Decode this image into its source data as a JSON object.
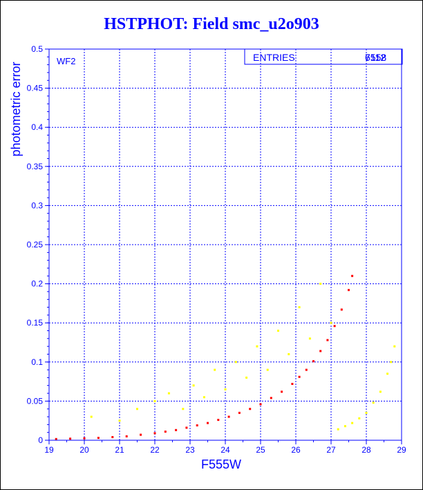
{
  "colors": {
    "axis": "#0000ff",
    "series_primary": "#ff0000",
    "series_secondary": "#ffff00",
    "background": "#ffffff"
  },
  "legend": {
    "label": "ENTRIES",
    "value_a": "7558",
    "value_b": "6112"
  },
  "chart_data": {
    "type": "scatter",
    "title": "HSTPHOT: Field smc_u2o903",
    "panel_label": "WF2",
    "xlabel": "F555W",
    "ylabel": "photometric error",
    "xlim": [
      19,
      29
    ],
    "ylim": [
      0,
      0.5
    ],
    "x_ticks": [
      19,
      20,
      21,
      22,
      23,
      24,
      25,
      26,
      27,
      28,
      29
    ],
    "y_ticks": [
      0,
      0.05,
      0.1,
      0.15,
      0.2,
      0.25,
      0.3,
      0.35,
      0.4,
      0.45,
      0.5
    ],
    "y_tick_labels": [
      "0",
      "0.05",
      "0.1",
      "0.15",
      "0.2",
      "0.25",
      "0.3",
      "0.35",
      "0.4",
      "0.45",
      "0.5"
    ],
    "grid": true,
    "legend_position": "top-right",
    "series": [
      {
        "name": "",
        "color": "#ff0000",
        "x": [
          19.2,
          19.6,
          20.0,
          20.4,
          20.8,
          21.2,
          21.6,
          22.0,
          22.3,
          22.6,
          22.9,
          23.2,
          23.5,
          23.8,
          24.1,
          24.4,
          24.7,
          25.0,
          25.3,
          25.6,
          25.9,
          26.1,
          26.3,
          26.5,
          26.7,
          26.9,
          27.1,
          27.3,
          27.5,
          27.6
        ],
        "y": [
          0.0015,
          0.002,
          0.0025,
          0.003,
          0.004,
          0.005,
          0.007,
          0.009,
          0.011,
          0.013,
          0.016,
          0.019,
          0.022,
          0.026,
          0.03,
          0.035,
          0.04,
          0.046,
          0.054,
          0.062,
          0.072,
          0.081,
          0.09,
          0.101,
          0.114,
          0.128,
          0.146,
          0.167,
          0.192,
          0.21
        ]
      },
      {
        "name": "",
        "color": "#ffff00",
        "x": [
          20.2,
          21.0,
          21.5,
          22.0,
          22.4,
          22.8,
          23.1,
          23.4,
          23.7,
          24.0,
          24.3,
          24.6,
          24.9,
          25.2,
          25.5,
          25.8,
          26.1,
          26.4,
          26.7,
          27.0,
          27.2,
          27.4,
          27.6,
          27.8,
          28.0,
          28.2,
          28.4,
          28.6,
          28.7,
          28.8
        ],
        "y": [
          0.03,
          0.025,
          0.04,
          0.05,
          0.06,
          0.04,
          0.07,
          0.055,
          0.09,
          0.065,
          0.1,
          0.08,
          0.12,
          0.09,
          0.14,
          0.11,
          0.17,
          0.13,
          0.2,
          0.15,
          0.014,
          0.018,
          0.022,
          0.028,
          0.035,
          0.048,
          0.062,
          0.085,
          0.1,
          0.12
        ]
      }
    ]
  }
}
